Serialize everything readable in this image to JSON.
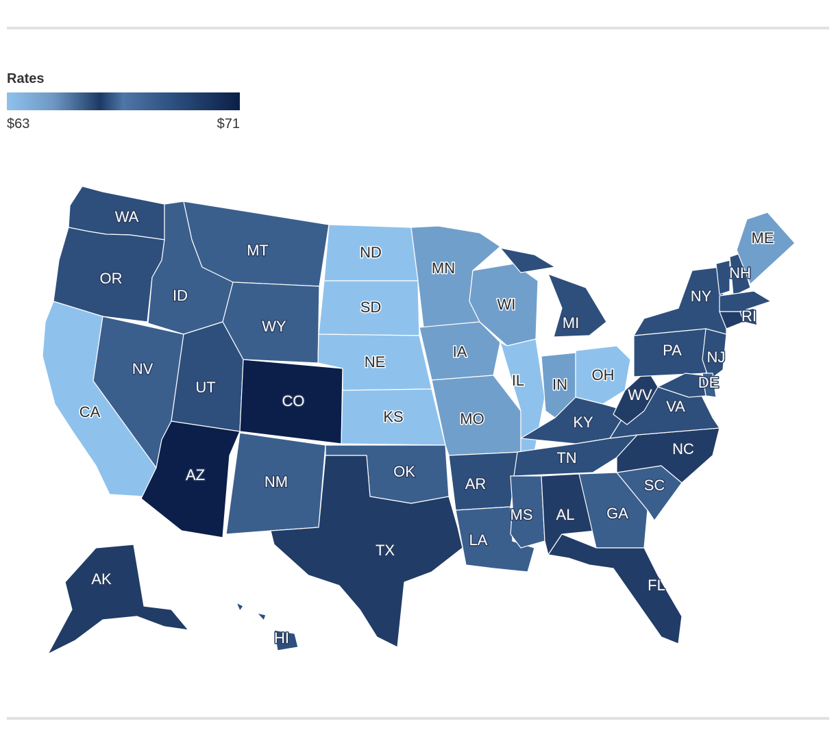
{
  "legend": {
    "title": "Rates",
    "min_label": "$63",
    "max_label": "$71",
    "gradient_colors": [
      "#8ec2ec",
      "#6e98c4",
      "#1d3a66",
      "#4e76a6",
      "#2e5282",
      "#0b1f47"
    ]
  },
  "palette": {
    "tier1": "#8ec2ec",
    "tier2": "#719fcb",
    "tier3": "#3b5f8d",
    "tier4": "#2e4f7c",
    "tier5": "#213c66",
    "tier6": "#0c1f4a"
  },
  "states": [
    {
      "code": "WA",
      "tier": 4
    },
    {
      "code": "OR",
      "tier": 4
    },
    {
      "code": "CA",
      "tier": 1
    },
    {
      "code": "ID",
      "tier": 3
    },
    {
      "code": "NV",
      "tier": 3
    },
    {
      "code": "MT",
      "tier": 3
    },
    {
      "code": "WY",
      "tier": 3
    },
    {
      "code": "UT",
      "tier": 4
    },
    {
      "code": "CO",
      "tier": 6
    },
    {
      "code": "AZ",
      "tier": 6
    },
    {
      "code": "NM",
      "tier": 3
    },
    {
      "code": "ND",
      "tier": 1
    },
    {
      "code": "SD",
      "tier": 1
    },
    {
      "code": "NE",
      "tier": 1
    },
    {
      "code": "KS",
      "tier": 1
    },
    {
      "code": "OK",
      "tier": 3
    },
    {
      "code": "TX",
      "tier": 5
    },
    {
      "code": "MN",
      "tier": 2
    },
    {
      "code": "IA",
      "tier": 2
    },
    {
      "code": "MO",
      "tier": 2
    },
    {
      "code": "AR",
      "tier": 4
    },
    {
      "code": "LA",
      "tier": 3
    },
    {
      "code": "WI",
      "tier": 2
    },
    {
      "code": "IL",
      "tier": 1
    },
    {
      "code": "MI",
      "tier": 4
    },
    {
      "code": "IN",
      "tier": 2
    },
    {
      "code": "OH",
      "tier": 1
    },
    {
      "code": "KY",
      "tier": 4
    },
    {
      "code": "TN",
      "tier": 4
    },
    {
      "code": "MS",
      "tier": 3
    },
    {
      "code": "AL",
      "tier": 5
    },
    {
      "code": "GA",
      "tier": 3
    },
    {
      "code": "FL",
      "tier": 5
    },
    {
      "code": "SC",
      "tier": 3
    },
    {
      "code": "NC",
      "tier": 5
    },
    {
      "code": "VA",
      "tier": 4
    },
    {
      "code": "WV",
      "tier": 5
    },
    {
      "code": "PA",
      "tier": 4
    },
    {
      "code": "NY",
      "tier": 4
    },
    {
      "code": "VT",
      "tier": 4
    },
    {
      "code": "NH",
      "tier": 4
    },
    {
      "code": "ME",
      "tier": 2
    },
    {
      "code": "MA",
      "tier": 4
    },
    {
      "code": "RI",
      "tier": 4
    },
    {
      "code": "CT",
      "tier": 5
    },
    {
      "code": "NJ",
      "tier": 4
    },
    {
      "code": "DE",
      "tier": 3
    },
    {
      "code": "MD",
      "tier": 4
    },
    {
      "code": "AK",
      "tier": 5
    },
    {
      "code": "HI",
      "tier": 4
    }
  ],
  "shown_labels": [
    "WA",
    "OR",
    "CA",
    "ID",
    "NV",
    "MT",
    "WY",
    "UT",
    "CO",
    "AZ",
    "NM",
    "ND",
    "SD",
    "NE",
    "KS",
    "OK",
    "TX",
    "MN",
    "IA",
    "MO",
    "AR",
    "LA",
    "WI",
    "IL",
    "MI",
    "IN",
    "OH",
    "KY",
    "TN",
    "MS",
    "AL",
    "GA",
    "FL",
    "SC",
    "NC",
    "VA",
    "WV",
    "PA",
    "NY",
    "NH",
    "ME",
    "RI",
    "NJ",
    "DE",
    "AK",
    "HI"
  ]
}
